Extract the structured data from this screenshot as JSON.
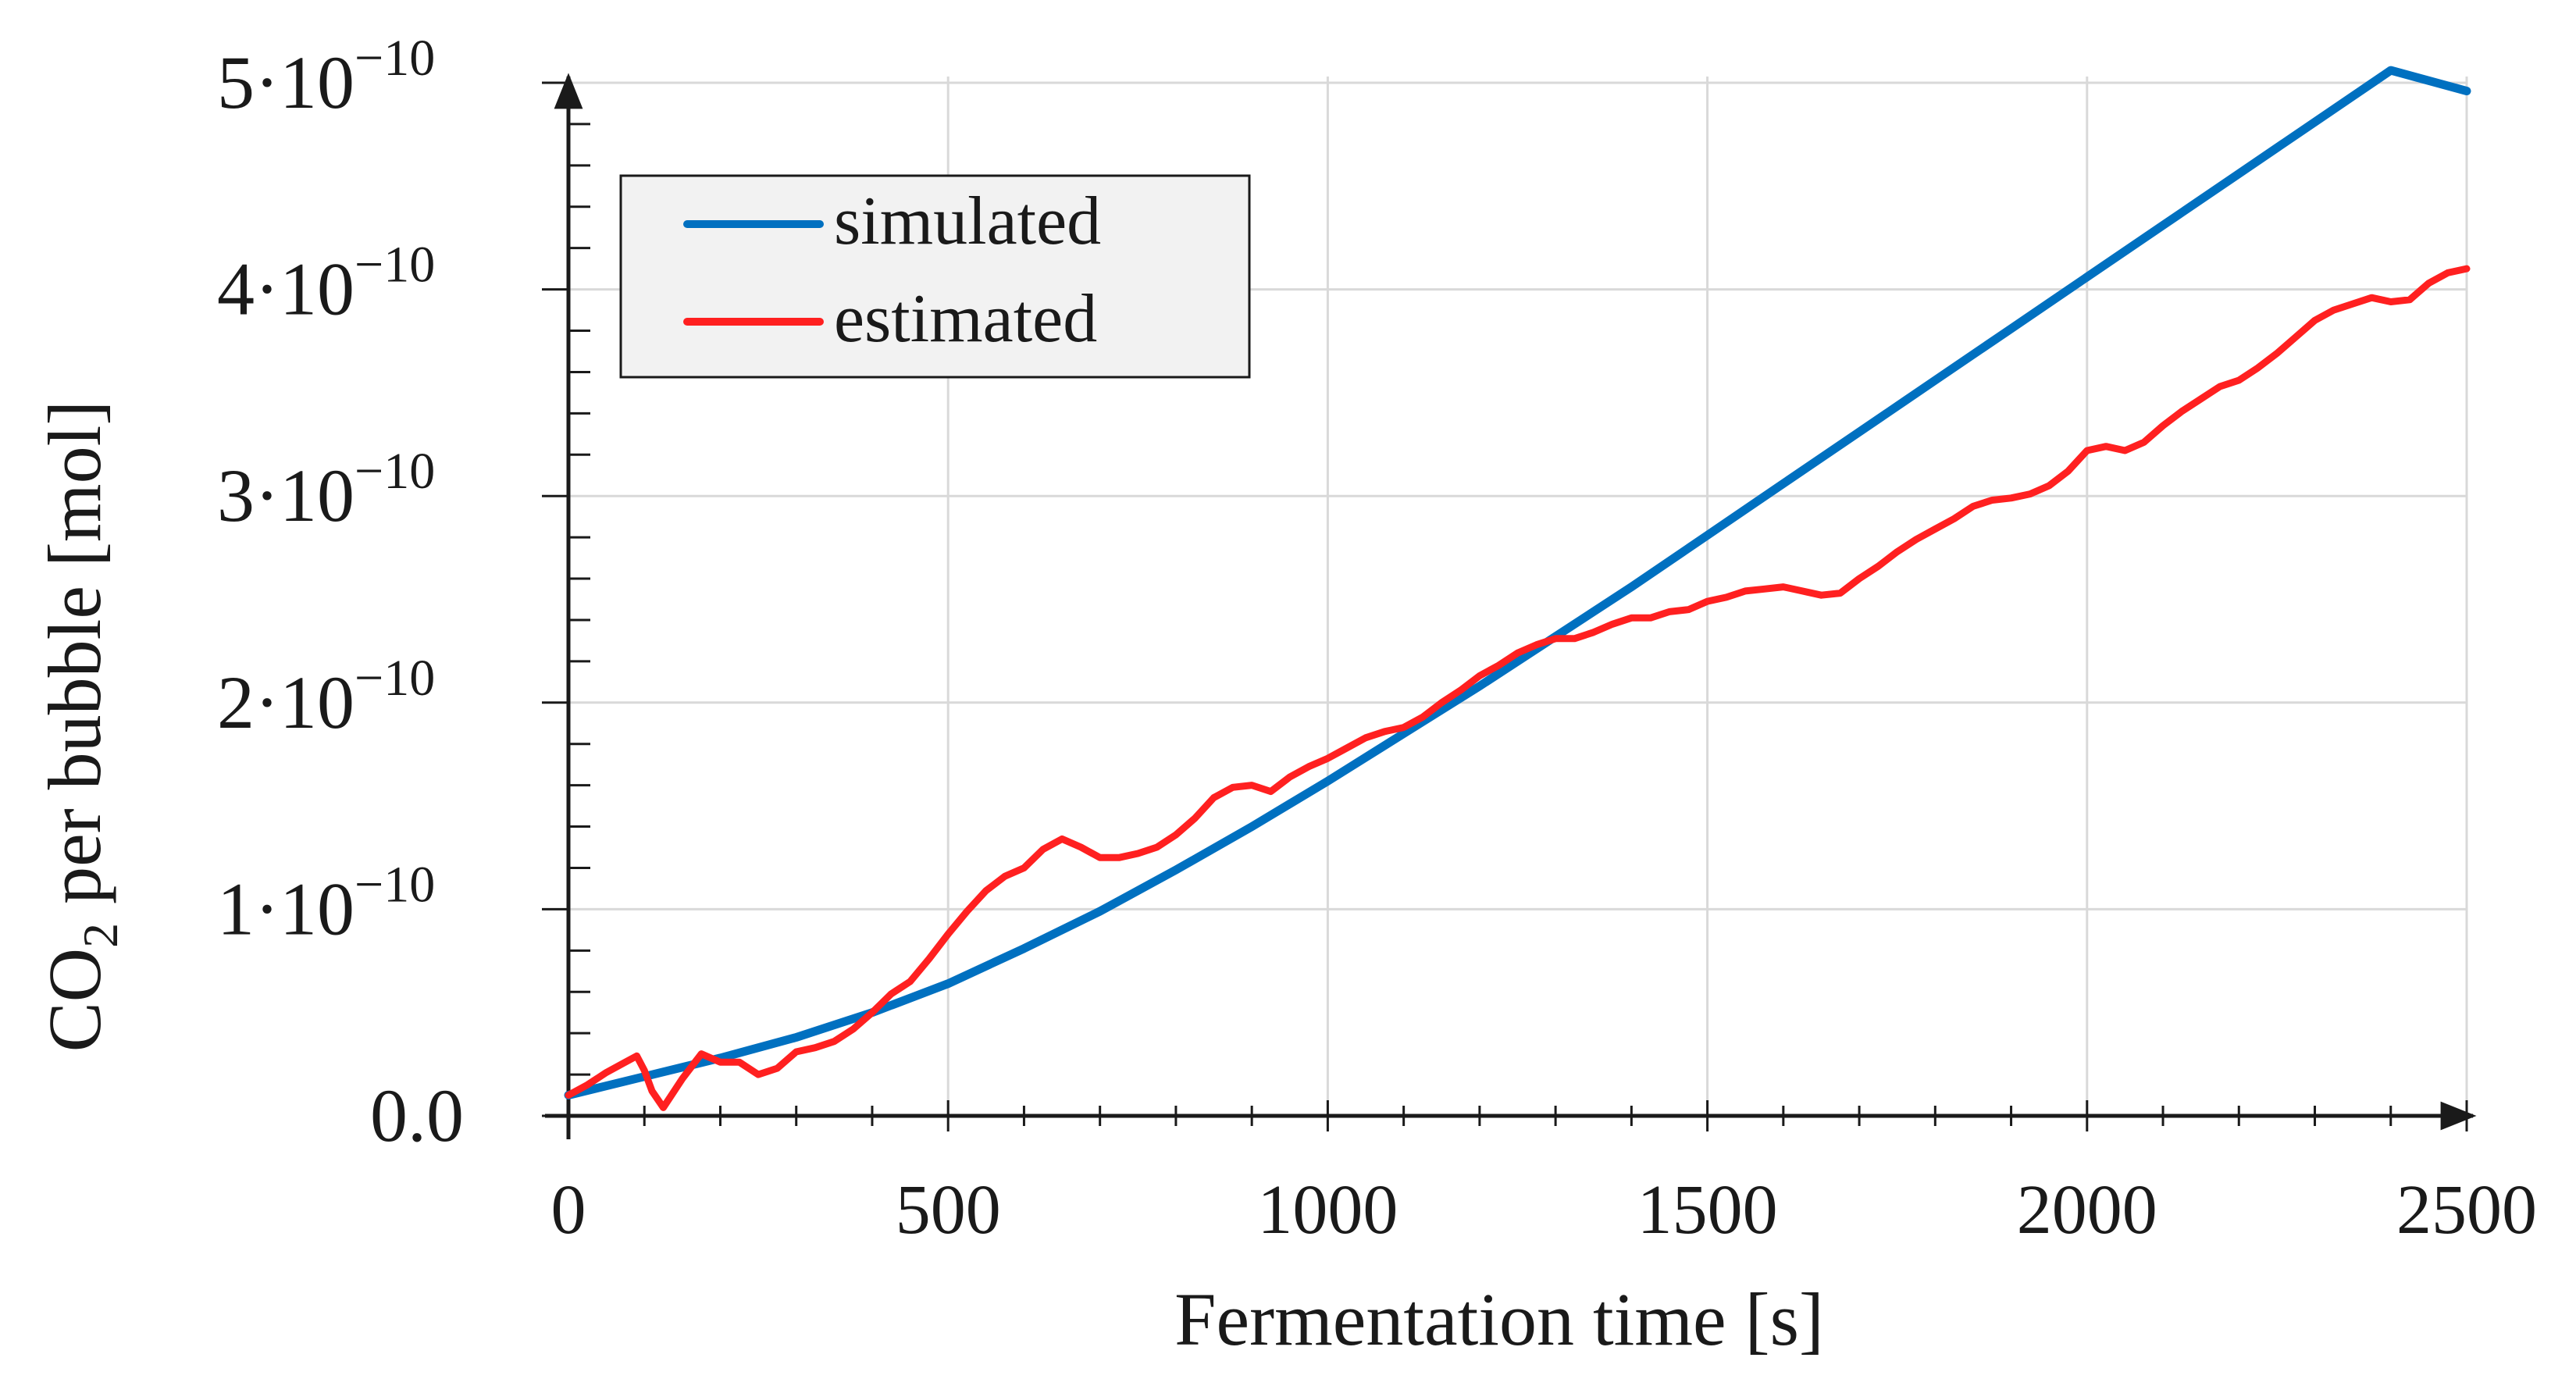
{
  "chart_data": {
    "type": "line",
    "title": "",
    "xlabel": "Fermentation time [s]",
    "ylabel": {
      "prefix": "CO",
      "subscript": "2",
      "suffix": " per bubble [mol]"
    },
    "xlim": [
      0,
      2500
    ],
    "ylim": [
      0,
      5e-10
    ],
    "x_ticks": [
      0,
      500,
      1000,
      1500,
      2000,
      2500
    ],
    "x_tick_labels": [
      "0",
      "500",
      "1000",
      "1500",
      "2000",
      "2500"
    ],
    "y_ticks": [
      0,
      1e-10,
      2e-10,
      3e-10,
      4e-10,
      5e-10
    ],
    "y_tick_labels": [
      {
        "mantissa": "0.0",
        "exponent": ""
      },
      {
        "mantissa": "1·10",
        "exponent": "−10"
      },
      {
        "mantissa": "2·10",
        "exponent": "−10"
      },
      {
        "mantissa": "3·10",
        "exponent": "−10"
      },
      {
        "mantissa": "4·10",
        "exponent": "−10"
      },
      {
        "mantissa": "5·10",
        "exponent": "−10"
      }
    ],
    "x_minor_step": 100,
    "y_minor_step": 2e-11,
    "grid": true,
    "legend_position": "top-left",
    "series": [
      {
        "name": "simulated",
        "color": "#0070c0",
        "x": [
          0,
          100,
          200,
          300,
          400,
          500,
          600,
          700,
          800,
          900,
          1000,
          1100,
          1200,
          1300,
          1400,
          1500,
          1600,
          1700,
          1800,
          1900,
          2000,
          2100,
          2200,
          2300,
          2400,
          2500
        ],
        "values": [
          1e-11,
          1.9e-11,
          2.8e-11,
          3.8e-11,
          5e-11,
          6.4e-11,
          8.1e-11,
          9.9e-11,
          1.19e-10,
          1.4e-10,
          1.62e-10,
          1.85e-10,
          2.08e-10,
          2.32e-10,
          2.56e-10,
          2.81e-10,
          3.06e-10,
          3.31e-10,
          3.56e-10,
          3.81e-10,
          4.06e-10,
          4.31e-10,
          4.56e-10,
          4.81e-10,
          5.06e-10,
          4.96e-10
        ]
      },
      {
        "name": "estimated",
        "color": "#ff2020",
        "x": [
          0,
          25,
          50,
          75,
          90,
          100,
          110,
          125,
          150,
          175,
          200,
          225,
          250,
          275,
          300,
          325,
          350,
          375,
          400,
          425,
          450,
          475,
          500,
          525,
          550,
          575,
          600,
          625,
          650,
          675,
          700,
          725,
          750,
          775,
          800,
          825,
          850,
          875,
          900,
          925,
          950,
          975,
          1000,
          1025,
          1050,
          1075,
          1100,
          1125,
          1150,
          1175,
          1200,
          1225,
          1250,
          1275,
          1300,
          1325,
          1350,
          1375,
          1400,
          1425,
          1450,
          1475,
          1500,
          1525,
          1550,
          1575,
          1600,
          1625,
          1650,
          1675,
          1700,
          1725,
          1750,
          1775,
          1800,
          1825,
          1850,
          1875,
          1900,
          1925,
          1950,
          1975,
          2000,
          2025,
          2050,
          2075,
          2100,
          2125,
          2150,
          2175,
          2200,
          2225,
          2250,
          2275,
          2300,
          2325,
          2350,
          2375,
          2400,
          2425,
          2450,
          2475,
          2500
        ],
        "values": [
          1e-11,
          1.5e-11,
          2.1e-11,
          2.6e-11,
          2.9e-11,
          2.2e-11,
          1.2e-11,
          4e-12,
          1.8e-11,
          3e-11,
          2.6e-11,
          2.6e-11,
          2e-11,
          2.3e-11,
          3.1e-11,
          3.3e-11,
          3.6e-11,
          4.2e-11,
          5e-11,
          5.9e-11,
          6.5e-11,
          7.6e-11,
          8.8e-11,
          9.9e-11,
          1.09e-10,
          1.16e-10,
          1.2e-10,
          1.29e-10,
          1.34e-10,
          1.3e-10,
          1.25e-10,
          1.25e-10,
          1.27e-10,
          1.3e-10,
          1.36e-10,
          1.44e-10,
          1.54e-10,
          1.59e-10,
          1.6e-10,
          1.57e-10,
          1.64e-10,
          1.69e-10,
          1.73e-10,
          1.78e-10,
          1.83e-10,
          1.86e-10,
          1.88e-10,
          1.93e-10,
          2e-10,
          2.06e-10,
          2.13e-10,
          2.18e-10,
          2.24e-10,
          2.28e-10,
          2.31e-10,
          2.31e-10,
          2.34e-10,
          2.38e-10,
          2.41e-10,
          2.41e-10,
          2.44e-10,
          2.45e-10,
          2.49e-10,
          2.51e-10,
          2.54e-10,
          2.55e-10,
          2.56e-10,
          2.54e-10,
          2.52e-10,
          2.53e-10,
          2.6e-10,
          2.66e-10,
          2.73e-10,
          2.79e-10,
          2.84e-10,
          2.89e-10,
          2.95e-10,
          2.98e-10,
          2.99e-10,
          3.01e-10,
          3.05e-10,
          3.12e-10,
          3.22e-10,
          3.24e-10,
          3.22e-10,
          3.26e-10,
          3.34e-10,
          3.41e-10,
          3.47e-10,
          3.53e-10,
          3.56e-10,
          3.62e-10,
          3.69e-10,
          3.77e-10,
          3.85e-10,
          3.9e-10,
          3.93e-10,
          3.96e-10,
          3.94e-10,
          3.95e-10,
          4.03e-10,
          4.08e-10,
          4.1e-10
        ]
      }
    ]
  }
}
